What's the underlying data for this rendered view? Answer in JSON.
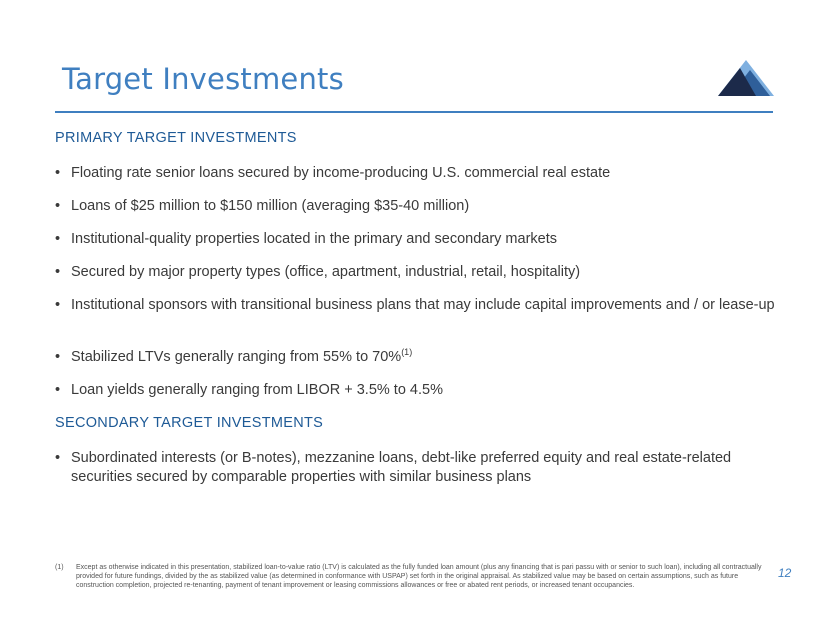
{
  "title": "Target Investments",
  "brand_colors": {
    "title": "#3f7fc0",
    "heading": "#1e5a96",
    "logo_dark": "#1c2a4a",
    "logo_mid": "#2f5f9a",
    "logo_light": "#7fb0e0"
  },
  "logo": {
    "icon": "mountain-logo-icon"
  },
  "primary": {
    "heading": "PRIMARY TARGET INVESTMENTS",
    "bullets": [
      {
        "text": "Floating rate senior loans secured by income-producing U.S. commercial real estate"
      },
      {
        "text": "Loans of $25 million to $150 million (averaging $35-40 million)"
      },
      {
        "text": "Institutional-quality properties located in the primary and secondary markets"
      },
      {
        "text": "Secured by major property types (office, apartment, industrial, retail, hospitality)"
      },
      {
        "text": "Institutional sponsors with transitional business plans that may include capital improvements and / or lease-up"
      },
      {
        "text": "Stabilized LTVs generally ranging from 55% to 70%",
        "sup": "(1)"
      },
      {
        "text": "Loan yields generally ranging from LIBOR + 3.5% to 4.5%"
      }
    ]
  },
  "secondary": {
    "heading": "SECONDARY TARGET INVESTMENTS",
    "bullets": [
      {
        "text": "Subordinated interests (or B-notes), mezzanine loans, debt-like preferred equity and real estate-related securities secured by comparable properties with similar business plans"
      }
    ]
  },
  "footnote": {
    "marker": "(1)",
    "text": "Except as otherwise indicated in this presentation, stabilized loan-to-value ratio (LTV) is calculated as the fully funded loan amount (plus any financing that is pari passu with or senior to such loan), including all contractually provided for future fundings, divided by the as stabilized value (as determined in conformance with USPAP) set forth in the original appraisal. As stabilized value may be based on certain assumptions, such as future construction completion, projected re-tenanting, payment of tenant improvement or leasing commissions allowances or free or abated rent periods, or increased tenant occupancies."
  },
  "page_number": "12",
  "bullet_glyph": "•"
}
